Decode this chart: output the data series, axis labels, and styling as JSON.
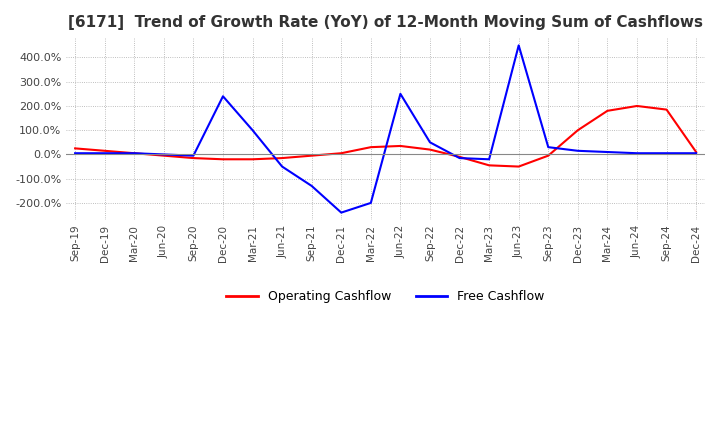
{
  "title": "[6171]  Trend of Growth Rate (YoY) of 12-Month Moving Sum of Cashflows",
  "title_fontsize": 11,
  "ylim": [
    -270,
    480
  ],
  "yticks": [
    -200,
    -100,
    0,
    100,
    200,
    300,
    400
  ],
  "ytick_labels": [
    "-200.0%",
    "-100.0%",
    "0.0%",
    "100.0%",
    "200.0%",
    "300.0%",
    "400.0%"
  ],
  "background_color": "#ffffff",
  "grid_color": "#aaaaaa",
  "operating_color": "#ff0000",
  "free_color": "#0000ff",
  "x_dates": [
    "Sep-19",
    "Dec-19",
    "Mar-20",
    "Jun-20",
    "Sep-20",
    "Dec-20",
    "Mar-21",
    "Jun-21",
    "Sep-21",
    "Dec-21",
    "Mar-22",
    "Jun-22",
    "Sep-22",
    "Dec-22",
    "Mar-23",
    "Jun-23",
    "Sep-23",
    "Dec-23",
    "Mar-24",
    "Jun-24",
    "Sep-24",
    "Dec-24"
  ],
  "operating_cashflow": [
    25,
    15,
    5,
    -5,
    -15,
    -20,
    -20,
    -15,
    -5,
    5,
    30,
    35,
    20,
    -10,
    -45,
    -50,
    -5,
    100,
    180,
    200,
    185,
    10
  ],
  "free_cashflow": [
    5,
    5,
    5,
    0,
    -5,
    240,
    100,
    -50,
    -130,
    -240,
    -200,
    250,
    50,
    -15,
    -20,
    450,
    30,
    15,
    10,
    5,
    5,
    5
  ],
  "legend_labels": [
    "Operating Cashflow",
    "Free Cashflow"
  ],
  "legend_colors": [
    "#ff0000",
    "#0000ff"
  ]
}
